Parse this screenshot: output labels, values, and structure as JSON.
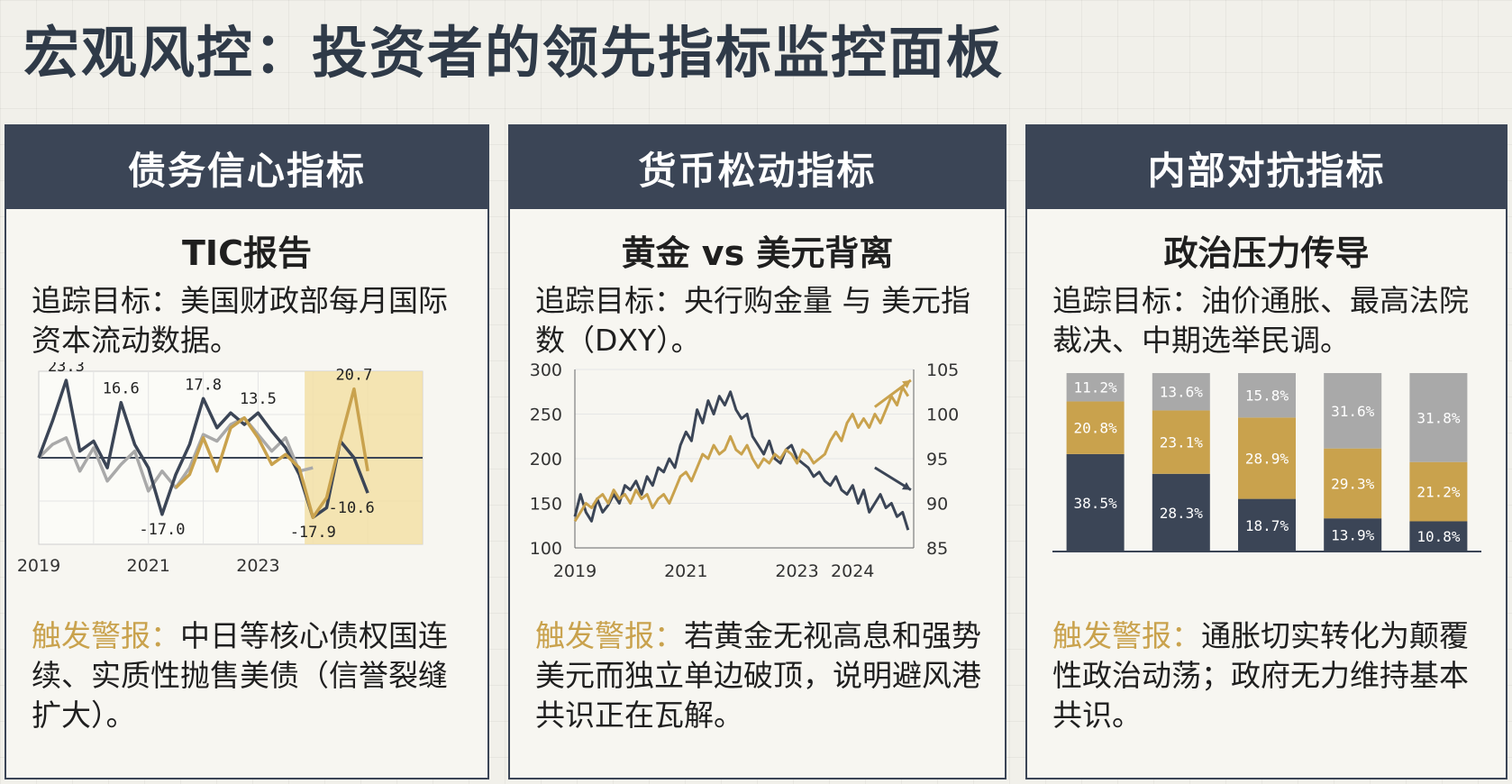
{
  "page": {
    "title": "宏观风控：投资者的领先指标监控面板"
  },
  "panels": [
    {
      "header": "债务信心指标",
      "subtitle": "TIC报告",
      "desc": "追踪目标：美国财政部每月国际资本流动数据。",
      "alert_label": "触发警报：",
      "alert_text": "中日等核心债权国连续、实质性抛售美债（信誉裂缝扩大）。"
    },
    {
      "header": "货币松动指标",
      "subtitle": "黄金 vs 美元背离",
      "desc": "追踪目标：央行购金量 与 美元指数（DXY）。",
      "alert_label": "触发警报：",
      "alert_text": "若黄金无视高息和强势美元而独立单边破顶，说明避风港共识正在瓦解。"
    },
    {
      "header": "内部对抗指标",
      "subtitle": "政治压力传导",
      "desc": "追踪目标：油价通胀、最高法院裁决、中期选举民调。",
      "alert_label": "触发警报：",
      "alert_text": "通胀切实转化为颠覆性政治动荡；政府无力维持基本共识。"
    }
  ],
  "colors": {
    "navy": "#3b4556",
    "gold": "#c9a24d",
    "gray": "#a9a9a9",
    "highlight": "#f2dfa6"
  },
  "chart_data": [
    {
      "type": "line",
      "x_ticks": [
        "2019",
        "2021",
        "2023"
      ],
      "x": [
        2019.0,
        2019.25,
        2019.5,
        2019.75,
        2020.0,
        2020.25,
        2020.5,
        2020.75,
        2021.0,
        2021.25,
        2021.5,
        2021.75,
        2022.0,
        2022.25,
        2022.5,
        2022.75,
        2023.0,
        2023.25,
        2023.5,
        2023.75,
        2024.0,
        2024.25,
        2024.5,
        2024.75,
        2025.0,
        2025.25,
        2025.5,
        2025.75,
        2026.0
      ],
      "ylim": [
        -26,
        26
      ],
      "highlight_x": [
        2023.85,
        2026.0
      ],
      "series": [
        {
          "color": "#a9a9a9",
          "values": [
            0,
            4,
            6,
            -4,
            3,
            -7,
            -2,
            2,
            -10,
            -4,
            -9,
            -3,
            7,
            5,
            10,
            12,
            7,
            2,
            6,
            -4,
            -3,
            null,
            null,
            null,
            null,
            null,
            null,
            null,
            null
          ]
        },
        {
          "color": "#3b4556",
          "values": [
            0,
            11,
            23.3,
            2,
            5,
            -3,
            16.6,
            4,
            -3,
            -17.0,
            -5,
            4,
            17.8,
            9,
            13.5,
            10,
            13.5,
            8,
            3,
            -5,
            -17.9,
            -15,
            5,
            0,
            -10.6,
            null,
            null,
            null,
            null
          ]
        },
        {
          "color": "#c9a24d",
          "values": [
            null,
            null,
            null,
            null,
            null,
            null,
            null,
            null,
            null,
            null,
            -9,
            -5,
            6,
            -4,
            9,
            12,
            6,
            -2,
            1,
            -3,
            -17.9,
            -12,
            5,
            20.7,
            -4,
            null,
            null,
            null,
            null
          ]
        }
      ],
      "data_labels": [
        {
          "text": "23.3",
          "x": 2019.5,
          "y": 23.3
        },
        {
          "text": "16.6",
          "x": 2020.5,
          "y": 16.6
        },
        {
          "text": "-17.0",
          "x": 2021.25,
          "y": -17.0
        },
        {
          "text": "17.8",
          "x": 2022.0,
          "y": 17.8
        },
        {
          "text": "13.5",
          "x": 2023.0,
          "y": 13.5
        },
        {
          "text": "-17.9",
          "x": 2024.0,
          "y": -17.9
        },
        {
          "text": "20.7",
          "x": 2024.75,
          "y": 20.7
        },
        {
          "text": "-10.6",
          "x": 2025.0,
          "y": -10.6
        }
      ]
    },
    {
      "type": "line",
      "x_ticks": [
        "2019",
        "2021",
        "2023",
        "2024"
      ],
      "x_range": [
        2019,
        2025.1
      ],
      "y_left": {
        "ticks": [
          300,
          250,
          200,
          150,
          100
        ],
        "range": [
          100,
          300
        ]
      },
      "y_right": {
        "ticks": [
          105,
          100,
          95,
          90,
          85
        ],
        "range": [
          85,
          105
        ]
      },
      "series": [
        {
          "axis": "left",
          "color": "#3b4556",
          "x": [
            2019.0,
            2019.1,
            2019.2,
            2019.3,
            2019.4,
            2019.5,
            2019.6,
            2019.7,
            2019.8,
            2019.9,
            2020.0,
            2020.1,
            2020.2,
            2020.3,
            2020.4,
            2020.5,
            2020.6,
            2020.7,
            2020.8,
            2020.9,
            2021.0,
            2021.1,
            2021.2,
            2021.3,
            2021.4,
            2021.5,
            2021.6,
            2021.7,
            2021.8,
            2021.9,
            2022.0,
            2022.1,
            2022.2,
            2022.3,
            2022.4,
            2022.5,
            2022.6,
            2022.7,
            2022.8,
            2022.9,
            2023.0,
            2023.1,
            2023.2,
            2023.3,
            2023.4,
            2023.5,
            2023.6,
            2023.7,
            2023.8,
            2023.9,
            2024.0,
            2024.1,
            2024.2,
            2024.3,
            2024.4,
            2024.5,
            2024.6,
            2024.7,
            2024.8,
            2024.9,
            2025.0
          ],
          "values": [
            135,
            160,
            140,
            130,
            155,
            140,
            148,
            160,
            150,
            170,
            165,
            175,
            160,
            180,
            170,
            190,
            185,
            200,
            190,
            215,
            230,
            220,
            255,
            240,
            265,
            250,
            270,
            260,
            275,
            255,
            245,
            250,
            225,
            215,
            205,
            220,
            200,
            195,
            210,
            215,
            200,
            195,
            190,
            180,
            185,
            175,
            170,
            180,
            165,
            160,
            170,
            150,
            165,
            140,
            150,
            160,
            145,
            150,
            135,
            140,
            120
          ]
        },
        {
          "axis": "right",
          "color": "#c9a24d",
          "x": [
            2019.0,
            2019.1,
            2019.2,
            2019.3,
            2019.4,
            2019.5,
            2019.6,
            2019.7,
            2019.8,
            2019.9,
            2020.0,
            2020.1,
            2020.2,
            2020.3,
            2020.4,
            2020.5,
            2020.6,
            2020.7,
            2020.8,
            2020.9,
            2021.0,
            2021.1,
            2021.2,
            2021.3,
            2021.4,
            2021.5,
            2021.6,
            2021.7,
            2021.8,
            2021.9,
            2022.0,
            2022.1,
            2022.2,
            2022.3,
            2022.4,
            2022.5,
            2022.6,
            2022.7,
            2022.8,
            2022.9,
            2023.0,
            2023.1,
            2023.2,
            2023.3,
            2023.4,
            2023.5,
            2023.6,
            2023.7,
            2023.8,
            2023.9,
            2024.0,
            2024.1,
            2024.2,
            2024.3,
            2024.4,
            2024.5,
            2024.6,
            2024.7,
            2024.8,
            2024.9,
            2025.0
          ],
          "values": [
            88,
            89,
            90,
            89.5,
            90.5,
            91,
            90,
            91.5,
            90.5,
            91,
            90,
            91.5,
            90.5,
            91,
            89.5,
            90.5,
            91,
            90,
            91.5,
            93,
            93.5,
            92.5,
            94,
            95.5,
            95,
            96.5,
            95.5,
            96,
            97.5,
            96,
            95.5,
            96.5,
            95,
            94,
            95,
            94.5,
            95.5,
            95,
            96,
            95.5,
            94.5,
            96,
            95.5,
            94.5,
            95,
            95.5,
            97,
            98,
            97,
            99,
            100,
            98.5,
            99.5,
            98.5,
            100,
            99,
            100.5,
            102,
            101,
            103,
            102
          ]
        }
      ],
      "arrows": [
        {
          "x1": 2024.4,
          "y1": 100.8,
          "x2": 2025.05,
          "y2": 103.8,
          "color": "#c9a24d",
          "axis": "right"
        },
        {
          "x1": 2024.4,
          "y1": 94.0,
          "x2": 2025.05,
          "y2": 91.5,
          "color": "#3b4556",
          "axis": "right"
        }
      ]
    },
    {
      "type": "bar",
      "stacked": true,
      "categories": [
        "",
        "",
        "",
        "",
        ""
      ],
      "series": [
        {
          "color": "#3b4556",
          "values": [
            38.5,
            28.3,
            18.7,
            13.9,
            10.8
          ],
          "labels": [
            "38.5%",
            "28.3%",
            "18.7%",
            "13.9%",
            "10.8%"
          ]
        },
        {
          "color": "#c9a24d",
          "values": [
            20.8,
            23.1,
            28.9,
            29.3,
            21.2
          ],
          "labels": [
            "20.8%",
            "23.1%",
            "28.9%",
            "29.3%",
            "21.2%"
          ]
        },
        {
          "color": "#a9a9a9",
          "values": [
            11.2,
            13.6,
            15.8,
            31.6,
            31.8
          ],
          "labels": [
            "11.2%",
            "13.6%",
            "15.8%",
            "31.6%",
            "31.8%"
          ]
        }
      ]
    }
  ]
}
